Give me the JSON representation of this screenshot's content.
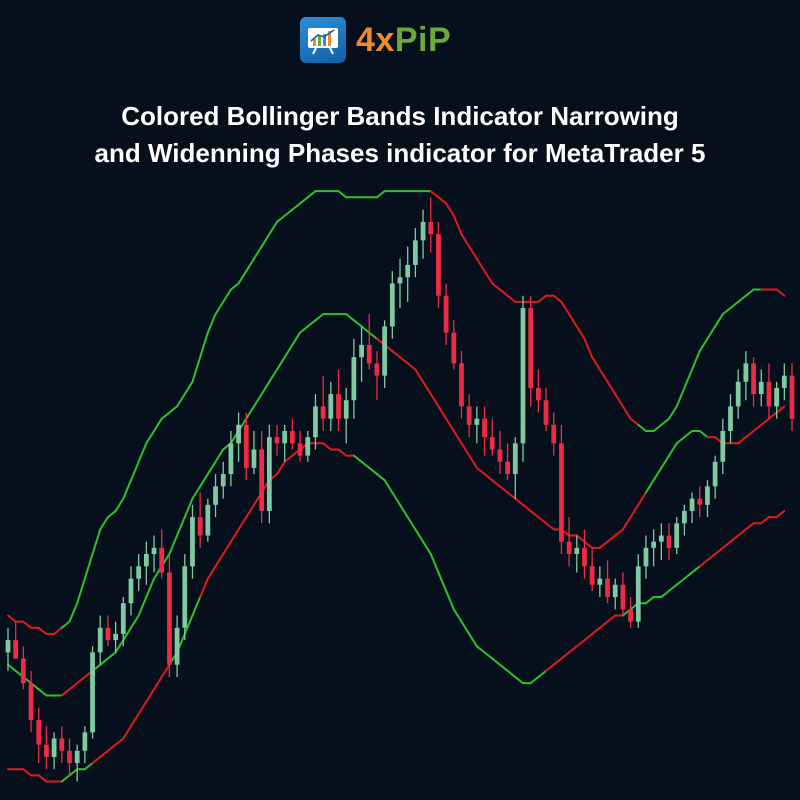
{
  "brand": {
    "logo_text_part1": "4x",
    "logo_text_part2": "PiP",
    "accent_orange": "#f08a2a",
    "accent_green": "#6aa93a",
    "logo_icon": "chart-board-icon"
  },
  "headline": {
    "line1": "Colored Bollinger Bands Indicator Narrowing",
    "line2": "and Widenning Phases indicator for MetaTrader 5"
  },
  "colors": {
    "background": "#06101d",
    "bull_candle": "#7fcaa2",
    "bear_candle": "#ef2a45",
    "band_widening": "#2ec12e",
    "band_narrowing": "#e01a1a"
  },
  "chart_data": {
    "type": "candlestick",
    "title": "",
    "xlabel": "",
    "ylabel": "",
    "grid": false,
    "legend": "none",
    "ylim": [
      0,
      100
    ],
    "candles": [
      {
        "o": 24,
        "h": 28,
        "l": 21,
        "c": 26
      },
      {
        "o": 26,
        "h": 29,
        "l": 23,
        "c": 23
      },
      {
        "o": 23,
        "h": 25,
        "l": 18,
        "c": 19
      },
      {
        "o": 19,
        "h": 21,
        "l": 11,
        "c": 13
      },
      {
        "o": 13,
        "h": 15,
        "l": 6,
        "c": 9
      },
      {
        "o": 9,
        "h": 12,
        "l": 5,
        "c": 7
      },
      {
        "o": 7,
        "h": 11,
        "l": 5,
        "c": 10
      },
      {
        "o": 10,
        "h": 12,
        "l": 6,
        "c": 8
      },
      {
        "o": 8,
        "h": 10,
        "l": 4,
        "c": 6
      },
      {
        "o": 6,
        "h": 9,
        "l": 3,
        "c": 8
      },
      {
        "o": 8,
        "h": 12,
        "l": 6,
        "c": 11
      },
      {
        "o": 11,
        "h": 25,
        "l": 10,
        "c": 24
      },
      {
        "o": 24,
        "h": 30,
        "l": 22,
        "c": 28
      },
      {
        "o": 28,
        "h": 30,
        "l": 25,
        "c": 26
      },
      {
        "o": 26,
        "h": 29,
        "l": 24,
        "c": 27
      },
      {
        "o": 27,
        "h": 33,
        "l": 25,
        "c": 32
      },
      {
        "o": 32,
        "h": 38,
        "l": 30,
        "c": 36
      },
      {
        "o": 36,
        "h": 40,
        "l": 34,
        "c": 38
      },
      {
        "o": 38,
        "h": 42,
        "l": 35,
        "c": 40
      },
      {
        "o": 40,
        "h": 43,
        "l": 37,
        "c": 41
      },
      {
        "o": 41,
        "h": 44,
        "l": 36,
        "c": 37
      },
      {
        "o": 37,
        "h": 40,
        "l": 20,
        "c": 22
      },
      {
        "o": 22,
        "h": 30,
        "l": 20,
        "c": 28
      },
      {
        "o": 28,
        "h": 40,
        "l": 26,
        "c": 38
      },
      {
        "o": 38,
        "h": 48,
        "l": 36,
        "c": 46
      },
      {
        "o": 46,
        "h": 50,
        "l": 41,
        "c": 43
      },
      {
        "o": 43,
        "h": 49,
        "l": 42,
        "c": 48
      },
      {
        "o": 48,
        "h": 53,
        "l": 46,
        "c": 51
      },
      {
        "o": 51,
        "h": 55,
        "l": 49,
        "c": 53
      },
      {
        "o": 53,
        "h": 60,
        "l": 51,
        "c": 58
      },
      {
        "o": 58,
        "h": 63,
        "l": 55,
        "c": 61
      },
      {
        "o": 61,
        "h": 63,
        "l": 52,
        "c": 54
      },
      {
        "o": 54,
        "h": 60,
        "l": 53,
        "c": 57
      },
      {
        "o": 57,
        "h": 60,
        "l": 45,
        "c": 47
      },
      {
        "o": 47,
        "h": 61,
        "l": 45,
        "c": 59
      },
      {
        "o": 59,
        "h": 61,
        "l": 56,
        "c": 58
      },
      {
        "o": 58,
        "h": 61,
        "l": 55,
        "c": 60
      },
      {
        "o": 60,
        "h": 62,
        "l": 57,
        "c": 58
      },
      {
        "o": 58,
        "h": 60,
        "l": 55,
        "c": 56
      },
      {
        "o": 56,
        "h": 60,
        "l": 55,
        "c": 59
      },
      {
        "o": 59,
        "h": 66,
        "l": 57,
        "c": 64
      },
      {
        "o": 64,
        "h": 69,
        "l": 60,
        "c": 62
      },
      {
        "o": 62,
        "h": 68,
        "l": 60,
        "c": 66
      },
      {
        "o": 66,
        "h": 70,
        "l": 60,
        "c": 62
      },
      {
        "o": 62,
        "h": 67,
        "l": 58,
        "c": 65
      },
      {
        "o": 65,
        "h": 75,
        "l": 62,
        "c": 72
      },
      {
        "o": 72,
        "h": 77,
        "l": 68,
        "c": 74
      },
      {
        "o": 74,
        "h": 79,
        "l": 70,
        "c": 71
      },
      {
        "o": 71,
        "h": 73,
        "l": 65,
        "c": 69
      },
      {
        "o": 69,
        "h": 78,
        "l": 67,
        "c": 77
      },
      {
        "o": 77,
        "h": 86,
        "l": 75,
        "c": 84
      },
      {
        "o": 84,
        "h": 88,
        "l": 80,
        "c": 85
      },
      {
        "o": 85,
        "h": 90,
        "l": 81,
        "c": 87
      },
      {
        "o": 87,
        "h": 93,
        "l": 85,
        "c": 91
      },
      {
        "o": 91,
        "h": 96,
        "l": 88,
        "c": 94
      },
      {
        "o": 94,
        "h": 98,
        "l": 89,
        "c": 92
      },
      {
        "o": 92,
        "h": 94,
        "l": 80,
        "c": 82
      },
      {
        "o": 82,
        "h": 84,
        "l": 74,
        "c": 76
      },
      {
        "o": 76,
        "h": 78,
        "l": 70,
        "c": 71
      },
      {
        "o": 71,
        "h": 73,
        "l": 62,
        "c": 64
      },
      {
        "o": 64,
        "h": 66,
        "l": 59,
        "c": 61
      },
      {
        "o": 61,
        "h": 64,
        "l": 58,
        "c": 62
      },
      {
        "o": 62,
        "h": 64,
        "l": 56,
        "c": 59
      },
      {
        "o": 59,
        "h": 62,
        "l": 56,
        "c": 57
      },
      {
        "o": 57,
        "h": 60,
        "l": 53,
        "c": 55
      },
      {
        "o": 55,
        "h": 58,
        "l": 52,
        "c": 53
      },
      {
        "o": 53,
        "h": 59,
        "l": 49,
        "c": 58
      },
      {
        "o": 58,
        "h": 82,
        "l": 55,
        "c": 80
      },
      {
        "o": 80,
        "h": 82,
        "l": 64,
        "c": 67
      },
      {
        "o": 67,
        "h": 70,
        "l": 63,
        "c": 65
      },
      {
        "o": 65,
        "h": 67,
        "l": 60,
        "c": 61
      },
      {
        "o": 61,
        "h": 63,
        "l": 56,
        "c": 58
      },
      {
        "o": 58,
        "h": 61,
        "l": 40,
        "c": 42
      },
      {
        "o": 42,
        "h": 46,
        "l": 38,
        "c": 40
      },
      {
        "o": 40,
        "h": 43,
        "l": 37,
        "c": 41
      },
      {
        "o": 41,
        "h": 44,
        "l": 36,
        "c": 38
      },
      {
        "o": 38,
        "h": 41,
        "l": 34,
        "c": 35
      },
      {
        "o": 35,
        "h": 38,
        "l": 33,
        "c": 36
      },
      {
        "o": 36,
        "h": 39,
        "l": 32,
        "c": 33
      },
      {
        "o": 33,
        "h": 36,
        "l": 31,
        "c": 35
      },
      {
        "o": 35,
        "h": 37,
        "l": 30,
        "c": 31
      },
      {
        "o": 31,
        "h": 33,
        "l": 28,
        "c": 29
      },
      {
        "o": 29,
        "h": 40,
        "l": 28,
        "c": 38
      },
      {
        "o": 38,
        "h": 43,
        "l": 36,
        "c": 41
      },
      {
        "o": 41,
        "h": 44,
        "l": 38,
        "c": 42
      },
      {
        "o": 42,
        "h": 45,
        "l": 39,
        "c": 43
      },
      {
        "o": 43,
        "h": 45,
        "l": 39,
        "c": 41
      },
      {
        "o": 41,
        "h": 46,
        "l": 40,
        "c": 45
      },
      {
        "o": 45,
        "h": 48,
        "l": 43,
        "c": 47
      },
      {
        "o": 47,
        "h": 50,
        "l": 45,
        "c": 49
      },
      {
        "o": 49,
        "h": 51,
        "l": 46,
        "c": 48
      },
      {
        "o": 48,
        "h": 52,
        "l": 46,
        "c": 51
      },
      {
        "o": 51,
        "h": 56,
        "l": 49,
        "c": 55
      },
      {
        "o": 55,
        "h": 62,
        "l": 53,
        "c": 60
      },
      {
        "o": 60,
        "h": 66,
        "l": 58,
        "c": 64
      },
      {
        "o": 64,
        "h": 70,
        "l": 62,
        "c": 68
      },
      {
        "o": 68,
        "h": 73,
        "l": 65,
        "c": 71
      },
      {
        "o": 71,
        "h": 72,
        "l": 64,
        "c": 66
      },
      {
        "o": 66,
        "h": 70,
        "l": 64,
        "c": 68
      },
      {
        "o": 68,
        "h": 71,
        "l": 62,
        "c": 64
      },
      {
        "o": 64,
        "h": 68,
        "l": 62,
        "c": 67
      },
      {
        "o": 67,
        "h": 71,
        "l": 65,
        "c": 69
      },
      {
        "o": 69,
        "h": 71,
        "l": 60,
        "c": 62
      }
    ],
    "bands": [
      {
        "name": "",
        "values": [
          28,
          27,
          27,
          26,
          25,
          24,
          24,
          25,
          26,
          28,
          30,
          32,
          34,
          36,
          38,
          41,
          44,
          47,
          50,
          53,
          56,
          59,
          62,
          66,
          70,
          73,
          76,
          77,
          76,
          75,
          75,
          74,
          74,
          73,
          72,
          70,
          68,
          66,
          64,
          63,
          62,
          61,
          60,
          59,
          58,
          57,
          56,
          55,
          55,
          54,
          54,
          53,
          53,
          52,
          52,
          52,
          51,
          50,
          48,
          46,
          44,
          42,
          41,
          40,
          40,
          40,
          40,
          41,
          42,
          43,
          44,
          45,
          46,
          47,
          48,
          49,
          50,
          51,
          52,
          53,
          54,
          55,
          56,
          57,
          59,
          62,
          66,
          70,
          72,
          73,
          72,
          71,
          70,
          69,
          68,
          67,
          66,
          66,
          67,
          68,
          69,
          71
        ],
        "phase": [
          "widen",
          "widen",
          "widen",
          "widen",
          "widen",
          "widen",
          "widen",
          "narrow",
          "narrow",
          "narrow",
          "narrow",
          "widen",
          "widen",
          "widen",
          "widen",
          "widen",
          "widen",
          "widen",
          "widen",
          "widen",
          "widen",
          "widen",
          "widen",
          "widen",
          "widen",
          "widen",
          "widen",
          "widen",
          "widen",
          "widen",
          "widen",
          "widen",
          "widen",
          "widen",
          "widen",
          "widen",
          "widen",
          "widen",
          "widen",
          "widen",
          "widen",
          "widen",
          "widen",
          "widen",
          "widen",
          "widen",
          "widen",
          "widen",
          "widen",
          "widen",
          "widen",
          "widen",
          "widen",
          "widen",
          "widen",
          "widen",
          "widen",
          "narrow",
          "narrow",
          "narrow",
          "narrow",
          "narrow",
          "narrow",
          "narrow",
          "narrow",
          "narrow",
          "narrow",
          "narrow",
          "narrow",
          "narrow",
          "narrow",
          "widen",
          "widen",
          "widen",
          "widen",
          "widen",
          "widen",
          "widen",
          "widen",
          "widen",
          "widen",
          "widen",
          "widen",
          "widen",
          "widen",
          "widen",
          "widen",
          "narrow",
          "narrow",
          "narrow",
          "narrow",
          "narrow",
          "narrow",
          "narrow",
          "narrow",
          "narrow",
          "narrow",
          "widen",
          "widen",
          "widen",
          "widen",
          "widen"
        ]
      }
    ],
    "upper_band": [
      30,
      29,
      29,
      28,
      28,
      27,
      27,
      28,
      29,
      32,
      36,
      40,
      44,
      46,
      47,
      49,
      52,
      55,
      58,
      60,
      62,
      63,
      64,
      66,
      68,
      72,
      76,
      79,
      81,
      83,
      84,
      86,
      88,
      90,
      92,
      94,
      95,
      96,
      97,
      98,
      99,
      99,
      99,
      99,
      98,
      98,
      98,
      98,
      98,
      99,
      99,
      99,
      99,
      99,
      99,
      99,
      98,
      97,
      95,
      92,
      90,
      88,
      86,
      84,
      83,
      82,
      81,
      81,
      81,
      81,
      82,
      82,
      81,
      79,
      77,
      75,
      72,
      70,
      68,
      66,
      64,
      62,
      61,
      60,
      60,
      61,
      62,
      64,
      67,
      70,
      73,
      75,
      77,
      79,
      80,
      81,
      82,
      83,
      83,
      83,
      83,
      82
    ],
    "middle_band": [
      22,
      21,
      20,
      19,
      18,
      17,
      17,
      17,
      18,
      19,
      20,
      21,
      22,
      23,
      24,
      26,
      28,
      30,
      33,
      36,
      38,
      40,
      43,
      46,
      49,
      51,
      53,
      55,
      57,
      58,
      60,
      62,
      64,
      66,
      68,
      70,
      72,
      74,
      76,
      77,
      78,
      79,
      79,
      79,
      79,
      78,
      77,
      76,
      75,
      74,
      73,
      72,
      71,
      70,
      68,
      66,
      64,
      62,
      60,
      58,
      56,
      54,
      53,
      52,
      51,
      50,
      49,
      48,
      47,
      46,
      45,
      44,
      44,
      43,
      43,
      42,
      41,
      41,
      42,
      43,
      44,
      46,
      48,
      50,
      52,
      54,
      56,
      58,
      59,
      60,
      60,
      59,
      59,
      58,
      58,
      58,
      59,
      60,
      61,
      62,
      63,
      64
    ],
    "lower_band": [
      5,
      5,
      5,
      4,
      4,
      3,
      3,
      3,
      4,
      5,
      5,
      6,
      7,
      8,
      9,
      10,
      12,
      14,
      16,
      18,
      20,
      22,
      24,
      27,
      30,
      33,
      36,
      38,
      40,
      42,
      44,
      46,
      48,
      50,
      52,
      53,
      55,
      56,
      57,
      58,
      58,
      58,
      57,
      57,
      56,
      56,
      55,
      54,
      53,
      52,
      50,
      48,
      46,
      44,
      42,
      40,
      37,
      34,
      31,
      29,
      27,
      25,
      24,
      23,
      22,
      21,
      20,
      19,
      19,
      20,
      21,
      22,
      23,
      24,
      25,
      26,
      27,
      28,
      29,
      30,
      30,
      31,
      32,
      32,
      33,
      33,
      34,
      35,
      36,
      37,
      38,
      39,
      40,
      41,
      42,
      43,
      44,
      45,
      45,
      46,
      46,
      47
    ],
    "upper_phase": "n,n,n,n,n,n,n,w,w,w,w,w,w,w,w,w,w,w,w,w,w,w,w,w,w,w,w,w,w,w,w,w,w,w,w,w,w,w,w,w,w,w,w,w,w,w,w,w,w,w,w,w,w,w,w,n,n,n,n,n,n,n,n,n,n,n,n,n,n,n,n,n,n,n,n,n,n,n,n,n,n,n,w,w,w,w,w,w,w,w,w,w,w,w,w,w,w,w,n,n,n,n",
    "middle_phase": "w,w,w,w,w,w,w,n,n,n,n,w,w,w,w,w,w,w,w,w,w,w,w,w,w,w,w,w,w,w,w,w,w,w,w,w,w,w,w,w,w,w,w,w,w,w,w,w,n,n,n,n,n,n,n,n,n,n,n,n,n,n,n,n,n,n,n,n,n,n,n,n,n,n,n,n,n,n,n,n,n,n,n,w,w,w,w,w,w,w,w,n,n,n,n,n,n,n,n,n,n,n",
    "lower_phase": "n,n,n,n,n,n,n,w,w,w,w,n,n,n,n,n,n,n,n,n,n,w,w,w,w,n,n,n,n,n,n,n,n,n,n,n,n,n,n,n,n,n,n,n,n,w,w,w,w,w,w,w,w,w,w,w,w,w,w,w,w,w,w,w,w,w,w,w,w,w,n,n,n,n,n,n,n,n,n,n,w,w,w,w,w,w,w,w,w,w,n,n,n,n,n,n,n,n,n,n,n,n"
  }
}
